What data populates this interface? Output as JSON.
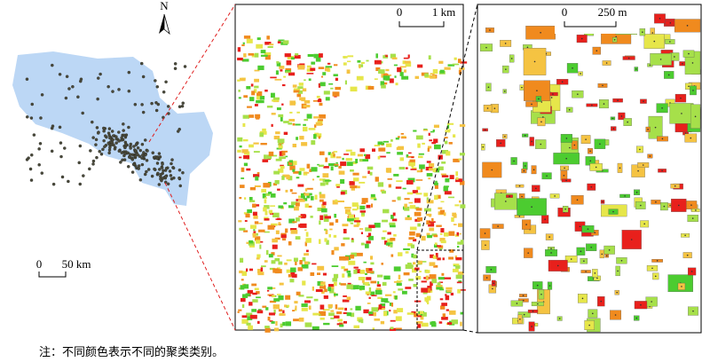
{
  "north_arrow": {
    "label": "N"
  },
  "scale_bars": [
    {
      "start": "0",
      "end": "50 km"
    },
    {
      "start": "0",
      "end": "1 km"
    },
    {
      "start": "0",
      "end": "250 m"
    }
  ],
  "caption": "注：不同颜色表示不同的聚类类别。"
}
